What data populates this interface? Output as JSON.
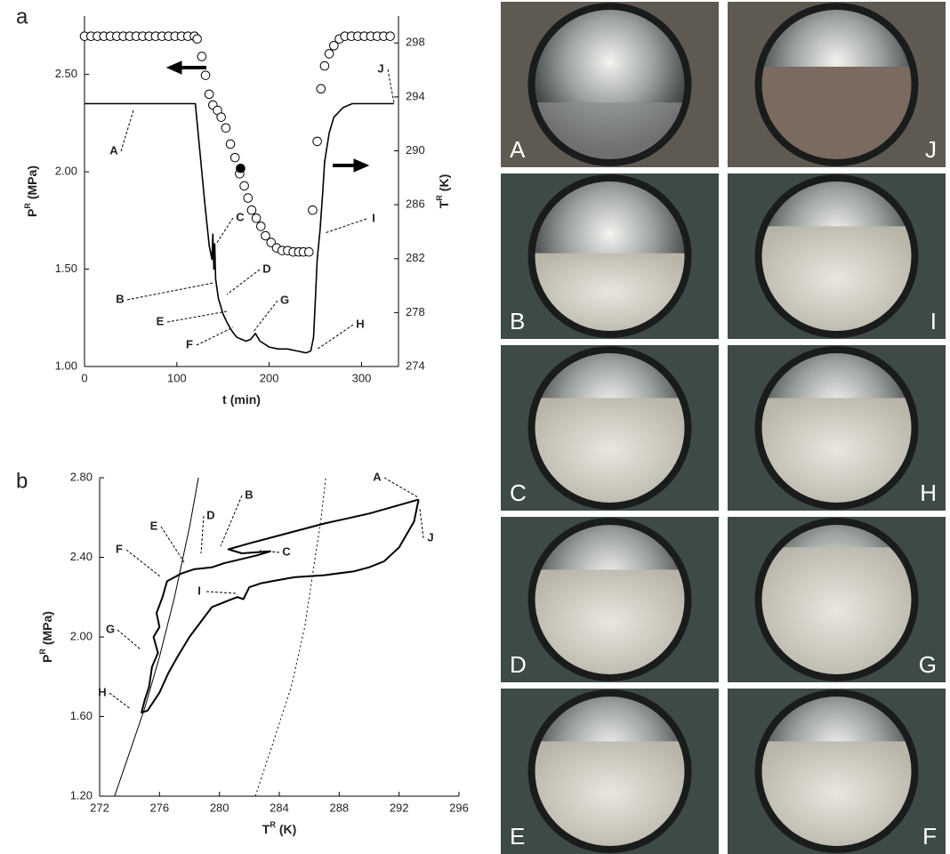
{
  "chart_data": [
    {
      "type": "line",
      "panel": "a",
      "xlabel": [
        "t",
        "(min)"
      ],
      "ylabel": [
        "P",
        "R",
        "(MPa)"
      ],
      "y2label": [
        "T",
        "R",
        "(K)"
      ],
      "xlim": [
        0,
        340
      ],
      "xticks": [
        0,
        100,
        200,
        300
      ],
      "ylim": [
        1.0,
        2.8
      ],
      "yticks": [
        {
          "value": 1.0,
          "label": "1.00"
        },
        {
          "value": 1.5,
          "label": "1.50"
        },
        {
          "value": 2.0,
          "label": "2.00"
        },
        {
          "value": 2.5,
          "label": "2.50"
        }
      ],
      "y2lim": [
        274,
        300
      ],
      "y2ticks": [
        274,
        278,
        282,
        286,
        290,
        294,
        298
      ],
      "grid": false,
      "series": [
        {
          "color": "#000000",
          "marker": "none",
          "x": [
            0,
            20,
            40,
            60,
            80,
            100,
            120,
            125,
            130,
            135,
            138,
            139,
            140,
            141,
            142,
            145,
            150,
            155,
            160,
            165,
            170,
            175,
            180,
            185,
            190,
            200,
            210,
            220,
            230,
            240,
            245,
            248,
            250,
            252,
            255,
            258,
            260,
            265,
            270,
            280,
            290,
            300,
            320,
            335
          ],
          "values": [
            2.35,
            2.35,
            2.35,
            2.35,
            2.35,
            2.35,
            2.35,
            2.1,
            1.85,
            1.62,
            1.55,
            1.68,
            1.5,
            1.63,
            1.45,
            1.35,
            1.27,
            1.22,
            1.18,
            1.15,
            1.14,
            1.13,
            1.14,
            1.17,
            1.13,
            1.1,
            1.09,
            1.09,
            1.08,
            1.07,
            1.08,
            1.15,
            1.35,
            1.55,
            1.7,
            1.9,
            2.05,
            2.2,
            2.28,
            2.33,
            2.35,
            2.35,
            2.35,
            2.35
          ]
        },
        {
          "color": "#000000",
          "marker": "circle",
          "filled": false,
          "axis": "y2",
          "x": [
            0,
            7,
            14,
            21,
            28,
            35,
            42,
            49,
            56,
            63,
            70,
            77,
            84,
            91,
            98,
            105,
            112,
            119,
            122,
            127,
            131,
            135,
            139,
            144,
            148,
            153,
            158,
            163,
            168,
            173,
            177,
            181,
            186,
            191,
            196,
            202,
            208,
            214,
            220,
            226,
            232,
            237,
            243,
            247,
            252,
            256,
            260,
            265,
            270,
            276,
            282,
            289,
            296,
            303,
            310,
            317,
            324,
            331
          ],
          "values": [
            298.5,
            298.5,
            298.5,
            298.5,
            298.5,
            298.5,
            298.5,
            298.5,
            298.5,
            298.5,
            298.5,
            298.5,
            298.5,
            298.5,
            298.5,
            298.5,
            298.5,
            298.5,
            298.3,
            297,
            295.6,
            294.2,
            293.4,
            293,
            292.5,
            291.7,
            290.5,
            289.5,
            288.3,
            287.4,
            286.5,
            285.6,
            285,
            284.4,
            283.7,
            283.2,
            282.8,
            282.6,
            282.6,
            282.5,
            282.5,
            282.5,
            282.5,
            285.6,
            290.7,
            294.6,
            296.3,
            297.2,
            297.8,
            298.3,
            298.5,
            298.5,
            298.5,
            298.5,
            298.5,
            298.5,
            298.5,
            298.5
          ]
        },
        {
          "color": "#000000",
          "marker": "circle",
          "filled": true,
          "axis": "y2",
          "x": [
            169
          ],
          "values": [
            288.7
          ]
        }
      ],
      "annotations": [
        "A",
        "B",
        "C",
        "D",
        "E",
        "F",
        "G",
        "H",
        "I",
        "J"
      ]
    },
    {
      "type": "line",
      "panel": "b",
      "xlabel": [
        "T",
        "R",
        "(K)"
      ],
      "ylabel": [
        "P",
        "R",
        "(MPa)"
      ],
      "xlim": [
        272,
        296
      ],
      "xticks": [
        272,
        276,
        280,
        284,
        288,
        292,
        296
      ],
      "ylim": [
        1.2,
        2.8
      ],
      "yticks": [
        {
          "value": 1.2,
          "label": "1.20"
        },
        {
          "value": 1.6,
          "label": "1.60"
        },
        {
          "value": 2.0,
          "label": "2.00"
        },
        {
          "value": 2.4,
          "label": "2.40"
        },
        {
          "value": 2.8,
          "label": "2.80"
        }
      ],
      "grid": false,
      "series": [
        {
          "color": "#000000",
          "marker": "none",
          "width": 2,
          "x": [
            293.3,
            290,
            287,
            284,
            282,
            280.6,
            281.5,
            283.4,
            282.5,
            280.3,
            279.5,
            278.3,
            277.5,
            277,
            276.5,
            276.2,
            275.8,
            276,
            275.6,
            275.9,
            275.5,
            275.3,
            275,
            274.8,
            275.2,
            276,
            276.6,
            277.2,
            278,
            279,
            279.5,
            280.5,
            281.2,
            281.6,
            282,
            282.8,
            283.5,
            285,
            287,
            289,
            290,
            291,
            292,
            293,
            293.3
          ],
          "values": [
            2.69,
            2.62,
            2.57,
            2.51,
            2.47,
            2.44,
            2.42,
            2.43,
            2.41,
            2.37,
            2.35,
            2.34,
            2.32,
            2.3,
            2.28,
            2.2,
            2.12,
            2.05,
            2.0,
            1.92,
            1.85,
            1.75,
            1.68,
            1.62,
            1.63,
            1.72,
            1.82,
            1.9,
            2.0,
            2.1,
            2.15,
            2.18,
            2.2,
            2.19,
            2.25,
            2.27,
            2.28,
            2.3,
            2.31,
            2.33,
            2.35,
            2.38,
            2.45,
            2.58,
            2.69
          ]
        },
        {
          "color": "#000000",
          "marker": "none",
          "width": 1,
          "x": [
            273,
            274,
            275,
            276,
            277,
            278,
            278.6
          ],
          "values": [
            1.2,
            1.42,
            1.64,
            1.9,
            2.2,
            2.55,
            2.8
          ]
        },
        {
          "color": "#000000",
          "marker": "none",
          "width": 1,
          "dash": "dotted",
          "x": [
            282.4,
            283.5,
            284.8,
            285.7,
            286.3,
            286.8,
            287.1
          ],
          "values": [
            1.2,
            1.45,
            1.75,
            2.05,
            2.35,
            2.6,
            2.8
          ]
        }
      ],
      "annotations": [
        "A",
        "B",
        "C",
        "D",
        "E",
        "F",
        "G",
        "H",
        "I",
        "J"
      ]
    }
  ],
  "photos": {
    "labels": [
      "A",
      "J",
      "B",
      "I",
      "C",
      "H",
      "D",
      "G",
      "E",
      "F"
    ]
  }
}
